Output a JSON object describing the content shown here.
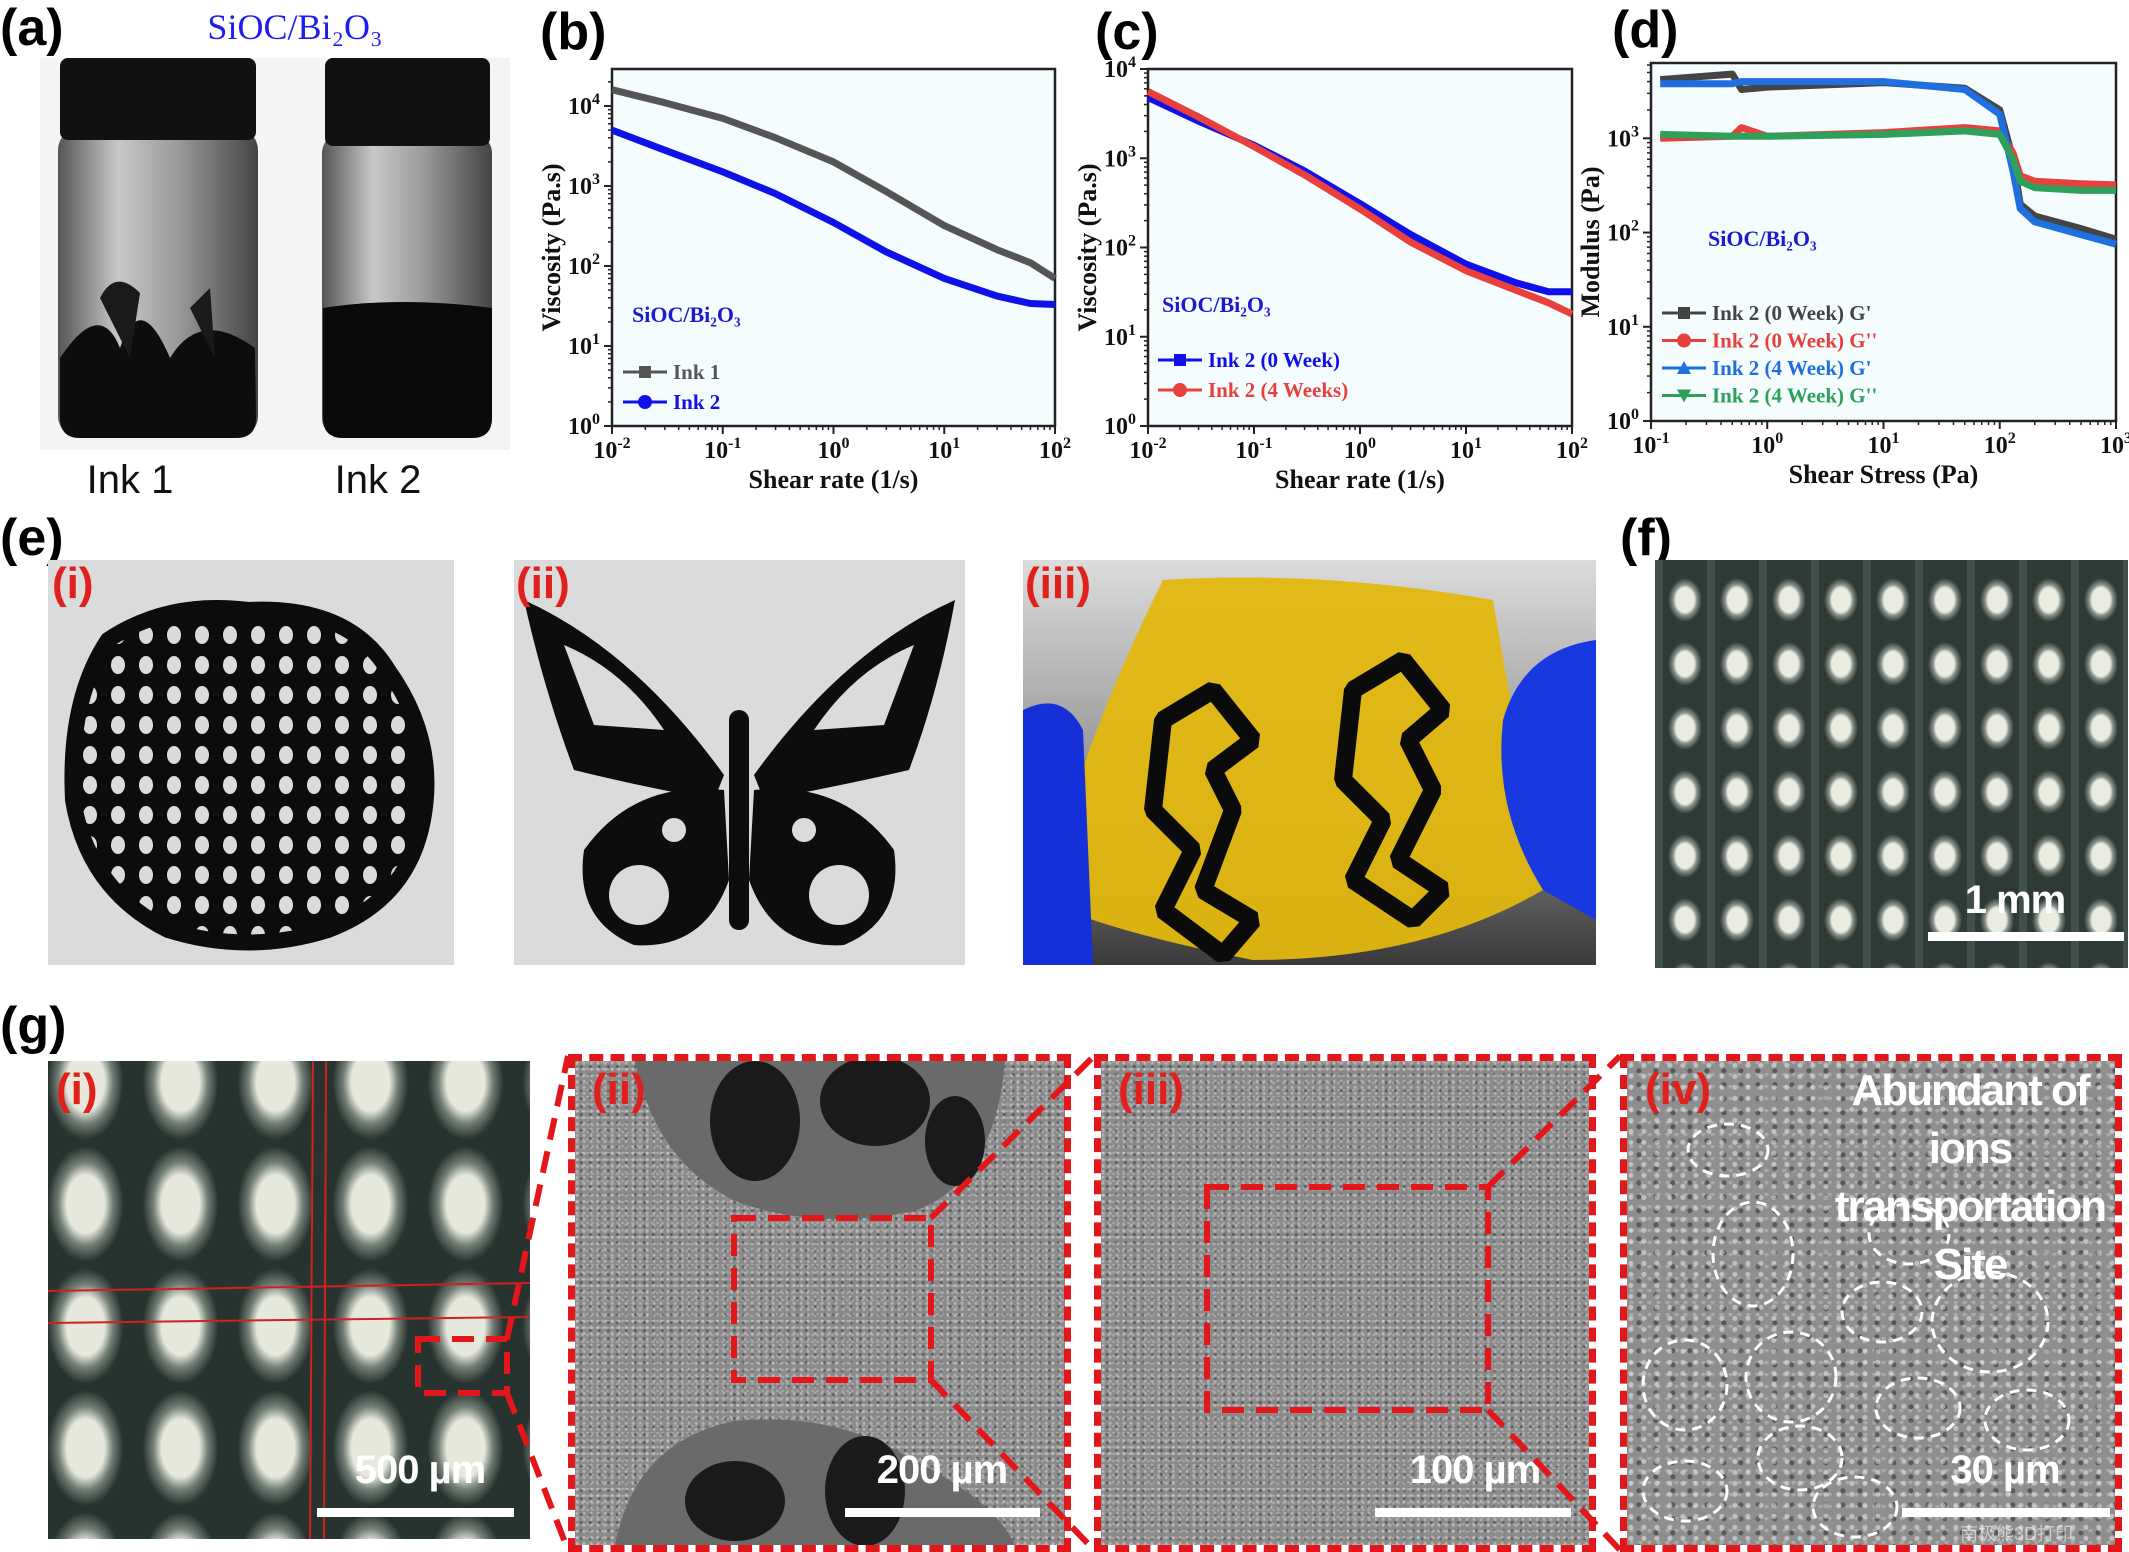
{
  "panel_labels": {
    "a": "(a)",
    "b": "(b)",
    "c": "(c)",
    "d": "(d)",
    "e": "(e)",
    "f": "(f)",
    "g": "(g)"
  },
  "panel_a": {
    "title": "SiOC/Bi₂O₃",
    "ink1": "Ink 1",
    "ink2": "Ink 2"
  },
  "panel_e": {
    "i": "(i)",
    "ii": "(ii)",
    "iii": "(iii)"
  },
  "panel_f": {
    "scale": "1 mm"
  },
  "panel_g": {
    "i": "(i)",
    "ii": "(ii)",
    "iii": "(iii)",
    "iv": "(iv)",
    "scale_i": "500 µm",
    "scale_ii": "200 µm",
    "scale_iii": "100 µm",
    "scale_iv": "30 µm",
    "annotation_lines": [
      "Abundant of",
      "ions",
      "transportation",
      "Site"
    ],
    "watermark": "南极熊3D打印"
  },
  "colors": {
    "ink1": "#555555",
    "ink2": "#1010e8",
    "week4": "#e8403c",
    "gp0": "#444444",
    "gpp0": "#e8403c",
    "gp4": "#1f6fe0",
    "gpp4": "#2ea05a",
    "plot_bg": "#f4fcfd",
    "label_red": "#e0201c"
  },
  "chart_data": [
    {
      "id": "b",
      "type": "line",
      "title": "",
      "xlabel": "Shear rate (1/s)",
      "ylabel": "Viscosity (Pa.s)",
      "xscale": "log",
      "yscale": "log",
      "xlim": [
        0.01,
        100
      ],
      "ylim": [
        1,
        29000
      ],
      "xticks_exp": [
        -2,
        -1,
        0,
        1,
        2
      ],
      "yticks_exp": [
        0,
        1,
        2,
        3,
        4
      ],
      "annotation": "SiOC/Bi₂O₃",
      "legend_position": "bottom-left",
      "grid": false,
      "x": [
        0.01,
        0.03,
        0.1,
        0.3,
        1,
        3,
        10,
        30,
        60,
        100
      ],
      "series": [
        {
          "name": "Ink 1",
          "color": "#555555",
          "marker": "square",
          "values": [
            16000,
            11000,
            7000,
            4000,
            2000,
            850,
            320,
            160,
            110,
            70
          ]
        },
        {
          "name": "Ink 2",
          "color": "#1010e8",
          "marker": "circle",
          "values": [
            5000,
            2800,
            1500,
            800,
            350,
            150,
            70,
            42,
            34,
            33
          ]
        }
      ]
    },
    {
      "id": "c",
      "type": "line",
      "title": "",
      "xlabel": "Shear rate (1/s)",
      "ylabel": "Viscosity (Pa.s)",
      "xscale": "log",
      "yscale": "log",
      "xlim": [
        0.01,
        100
      ],
      "ylim": [
        1,
        10000
      ],
      "xticks_exp": [
        -2,
        -1,
        0,
        1,
        2
      ],
      "yticks_exp": [
        0,
        1,
        2,
        3,
        4
      ],
      "annotation": "SiOC/Bi₂O₃",
      "legend_position": "bottom-left",
      "grid": false,
      "x": [
        0.01,
        0.03,
        0.1,
        0.3,
        1,
        3,
        10,
        30,
        60,
        100
      ],
      "series": [
        {
          "name": "Ink 2 (0 Week)",
          "color": "#1010e8",
          "marker": "square",
          "values": [
            4800,
            2600,
            1400,
            720,
            310,
            140,
            65,
            40,
            32,
            32
          ]
        },
        {
          "name": "Ink 2 (4 Weeks)",
          "color": "#e8403c",
          "marker": "circle",
          "values": [
            5600,
            2900,
            1350,
            650,
            270,
            115,
            55,
            33,
            24,
            18
          ]
        }
      ]
    },
    {
      "id": "d",
      "type": "line",
      "title": "",
      "xlabel": "Shear Stress (Pa)",
      "ylabel": "Modulus (Pa)",
      "xscale": "log",
      "yscale": "log",
      "xlim": [
        0.1,
        1000
      ],
      "ylim": [
        1,
        6300
      ],
      "xticks_exp": [
        -1,
        0,
        1,
        2,
        3
      ],
      "yticks_exp": [
        0,
        1,
        2,
        3
      ],
      "annotation": "SiOC/Bi₂O₃",
      "legend_position": "bottom-left",
      "grid": false,
      "x": [
        0.12,
        0.5,
        0.6,
        1,
        10,
        50,
        100,
        130,
        150,
        200,
        500,
        1000
      ],
      "series": [
        {
          "name": "Ink 2 (0 Week) G'",
          "color": "#444444",
          "marker": "square",
          "values": [
            4200,
            4800,
            3300,
            3500,
            3900,
            3400,
            2000,
            600,
            200,
            150,
            110,
            85
          ]
        },
        {
          "name": "Ink 2 (0 Week) G''",
          "color": "#e8403c",
          "marker": "circle",
          "values": [
            1000,
            1050,
            1300,
            1050,
            1150,
            1300,
            1200,
            700,
            400,
            350,
            330,
            320
          ]
        },
        {
          "name": "Ink 2 (4 Week) G'",
          "color": "#1f6fe0",
          "marker": "triangle-up",
          "values": [
            3800,
            3800,
            4000,
            4000,
            4000,
            3300,
            1800,
            450,
            180,
            130,
            95,
            75
          ]
        },
        {
          "name": "Ink 2 (4 Week) G''",
          "color": "#2ea05a",
          "marker": "triangle-down",
          "values": [
            1100,
            1050,
            1050,
            1050,
            1100,
            1200,
            1100,
            600,
            350,
            300,
            280,
            280
          ]
        }
      ]
    }
  ]
}
